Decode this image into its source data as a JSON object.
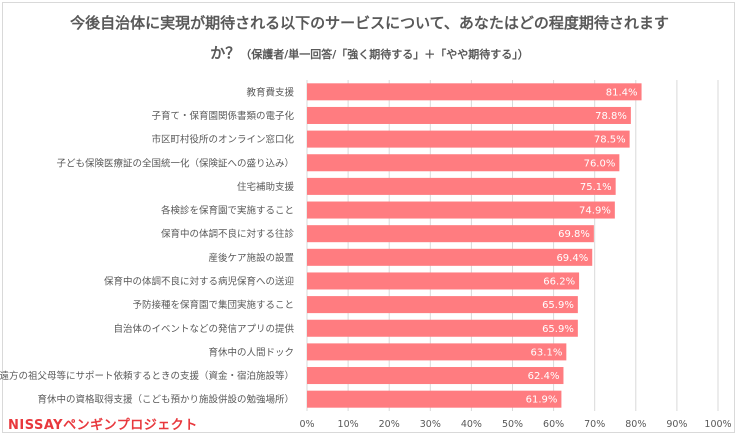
{
  "chart_data": {
    "type": "bar",
    "orientation": "horizontal",
    "title": "今後自治体に実現が期待される以下のサービスについて、あなたはどの程度期待されます",
    "title_line2": "か？",
    "subtitle": "（保護者/単一回答/「強く期待する」＋「やや期待する」）",
    "categories": [
      "教育費支援",
      "子育て・保育園関係書類の電子化",
      "市区町村役所のオンライン窓口化",
      "子ども保険医療証の全国統一化（保険証への盛り込み）",
      "住宅補助支援",
      "各検診を保育園で実施すること",
      "保育中の体調不良に対する往診",
      "産後ケア施設の設置",
      "保育中の体調不良に対する病児保育への送迎",
      "予防接種を保育園で集団実施すること",
      "自治体のイベントなどの発信アプリの提供",
      "育休中の人間ドック",
      "遠方の祖父母等にサポート依頼するときの支援（資金・宿泊施設等）",
      "育休中の資格取得支援（こども預かり施設併設の勉強場所）"
    ],
    "values": [
      81.4,
      78.8,
      78.5,
      76.0,
      75.1,
      74.9,
      69.8,
      69.4,
      66.2,
      65.9,
      65.9,
      63.1,
      62.4,
      61.9
    ],
    "value_labels": [
      "81.4%",
      "78.8%",
      "78.5%",
      "76.0%",
      "75.1%",
      "74.9%",
      "69.8%",
      "69.4%",
      "66.2%",
      "65.9%",
      "65.9%",
      "63.1%",
      "62.4%",
      "61.9%"
    ],
    "xlim": [
      0,
      100
    ],
    "x_ticks": [
      "0%",
      "10%",
      "20%",
      "30%",
      "40%",
      "50%",
      "60%",
      "70%",
      "80%",
      "90%",
      "100%"
    ],
    "grid": true,
    "bar_color": "#ff7c80",
    "label_color": "#ffffff"
  },
  "logo": {
    "text": "NISSAYペンギンプロジェクト",
    "color": "#e8383d"
  }
}
